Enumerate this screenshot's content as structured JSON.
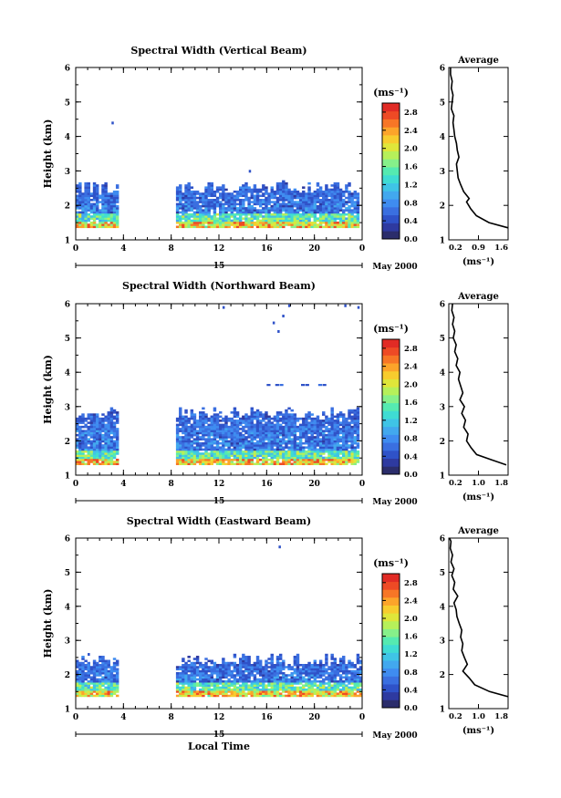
{
  "chart_data": [
    {
      "type": "heatmap",
      "title": "Spectral Width (Vertical Beam)",
      "ylabel": "Height (km)",
      "xlabel": "",
      "x_ticks": [
        "0",
        "4",
        "8",
        "12",
        "16",
        "20",
        "0"
      ],
      "y_ticks": [
        "1",
        "2",
        "3",
        "4",
        "5",
        "6"
      ],
      "xlim": [
        0,
        24
      ],
      "ylim": [
        1,
        6
      ],
      "date_label": "15",
      "month_label": "May 2000",
      "colorbar": {
        "unit": "(ms⁻¹)",
        "ticks": [
          "0.0",
          "0.4",
          "0.8",
          "1.2",
          "1.6",
          "2.0",
          "2.4",
          "2.8"
        ],
        "range": [
          0.0,
          3.0
        ]
      },
      "data_gaps": [
        [
          3.8,
          8.2
        ]
      ],
      "echo_top_km": 2.5,
      "echo_base_km": 1.35,
      "isolated_echoes": [
        {
          "t": 3.0,
          "h": 4.35
        },
        {
          "t": 14.5,
          "h": 2.95
        }
      ],
      "profile": {
        "title": "Average",
        "xlabel": "(ms⁻¹)",
        "x_ticks": [
          "0.2",
          "0.9",
          "1.6"
        ],
        "xlim": [
          0.2,
          1.6
        ],
        "y_ticks": [
          "1",
          "2",
          "3",
          "4",
          "5",
          "6"
        ],
        "heights": [
          1.35,
          1.5,
          1.7,
          1.9,
          2.1,
          2.2,
          2.4,
          2.6,
          2.8,
          3.0,
          3.2,
          3.4,
          3.6,
          3.8,
          4.0,
          4.2,
          4.4,
          4.6,
          4.8,
          5.0,
          5.2,
          5.4,
          5.6,
          5.8,
          6.0
        ],
        "values": [
          1.6,
          1.15,
          0.85,
          0.72,
          0.62,
          0.68,
          0.55,
          0.48,
          0.42,
          0.4,
          0.38,
          0.44,
          0.4,
          0.38,
          0.34,
          0.32,
          0.3,
          0.32,
          0.26,
          0.28,
          0.3,
          0.26,
          0.28,
          0.24,
          0.24
        ]
      }
    },
    {
      "type": "heatmap",
      "title": "Spectral Width (Northward Beam)",
      "ylabel": "Height (km)",
      "xlabel": "",
      "x_ticks": [
        "0",
        "4",
        "8",
        "12",
        "16",
        "20",
        "0"
      ],
      "y_ticks": [
        "1",
        "2",
        "3",
        "4",
        "5",
        "6"
      ],
      "xlim": [
        0,
        24
      ],
      "ylim": [
        1,
        6
      ],
      "date_label": "15",
      "month_label": "May 2000",
      "colorbar": {
        "unit": "(ms⁻¹)",
        "ticks": [
          "0.0",
          "0.4",
          "0.8",
          "1.2",
          "1.6",
          "2.0",
          "2.4",
          "2.8"
        ],
        "range": [
          0.0,
          3.0
        ]
      },
      "data_gaps": [
        [
          3.8,
          8.2
        ]
      ],
      "echo_top_km": 2.8,
      "echo_base_km": 1.3,
      "isolated_echoes": [
        {
          "t": 12.3,
          "h": 5.85
        },
        {
          "t": 16.5,
          "h": 5.4
        },
        {
          "t": 16.9,
          "h": 5.15
        },
        {
          "t": 17.3,
          "h": 5.6
        },
        {
          "t": 17.8,
          "h": 5.9
        },
        {
          "t": 22.5,
          "h": 5.9
        },
        {
          "t": 23.6,
          "h": 5.85
        }
      ],
      "elevated_layer": {
        "t_start": 16.0,
        "t_end": 21.5,
        "h": 3.6
      },
      "profile": {
        "title": "Average",
        "xlabel": "(ms⁻¹)",
        "x_ticks": [
          "0.2",
          "1.0",
          "1.8"
        ],
        "xlim": [
          0.2,
          1.8
        ],
        "y_ticks": [
          "1",
          "2",
          "3",
          "4",
          "5",
          "6"
        ],
        "heights": [
          1.3,
          1.45,
          1.6,
          1.8,
          2.0,
          2.2,
          2.4,
          2.6,
          2.8,
          3.0,
          3.2,
          3.4,
          3.6,
          3.8,
          4.0,
          4.2,
          4.4,
          4.6,
          4.8,
          5.0,
          5.2,
          5.4,
          5.6,
          5.8,
          6.0
        ],
        "values": [
          1.75,
          1.35,
          0.95,
          0.8,
          0.68,
          0.72,
          0.6,
          0.65,
          0.55,
          0.62,
          0.5,
          0.58,
          0.52,
          0.46,
          0.5,
          0.4,
          0.44,
          0.36,
          0.4,
          0.32,
          0.36,
          0.3,
          0.34,
          0.28,
          0.3
        ]
      }
    },
    {
      "type": "heatmap",
      "title": "Spectral Width (Eastward Beam)",
      "ylabel": "Height (km)",
      "xlabel": "Local Time",
      "x_ticks": [
        "0",
        "4",
        "8",
        "12",
        "16",
        "20",
        "0"
      ],
      "y_ticks": [
        "1",
        "2",
        "3",
        "4",
        "5",
        "6"
      ],
      "xlim": [
        0,
        24
      ],
      "ylim": [
        1,
        6
      ],
      "date_label": "15",
      "month_label": "May 2000",
      "colorbar": {
        "unit": "(ms⁻¹)",
        "ticks": [
          "0.0",
          "0.4",
          "0.8",
          "1.2",
          "1.6",
          "2.0",
          "2.4",
          "2.8"
        ],
        "range": [
          0.0,
          3.0
        ]
      },
      "data_gaps": [
        [
          3.8,
          8.2
        ]
      ],
      "echo_top_km": 2.4,
      "echo_base_km": 1.35,
      "isolated_echoes": [
        {
          "t": 1.0,
          "h": 2.55
        },
        {
          "t": 17.0,
          "h": 5.7
        }
      ],
      "profile": {
        "title": "Average",
        "xlabel": "(ms⁻¹)",
        "x_ticks": [
          "0.2",
          "1.0",
          "1.8"
        ],
        "xlim": [
          0.2,
          1.8
        ],
        "y_ticks": [
          "1",
          "2",
          "3",
          "4",
          "5",
          "6"
        ],
        "heights": [
          1.35,
          1.5,
          1.7,
          1.9,
          2.1,
          2.3,
          2.5,
          2.7,
          2.9,
          3.1,
          3.3,
          3.5,
          3.7,
          3.9,
          4.1,
          4.3,
          4.5,
          4.7,
          4.9,
          5.1,
          5.3,
          5.5,
          5.7,
          5.9,
          6.0
        ],
        "values": [
          1.8,
          1.3,
          0.9,
          0.75,
          0.58,
          0.7,
          0.62,
          0.55,
          0.58,
          0.52,
          0.55,
          0.48,
          0.42,
          0.4,
          0.34,
          0.44,
          0.32,
          0.36,
          0.28,
          0.34,
          0.26,
          0.3,
          0.24,
          0.26,
          0.22
        ]
      }
    }
  ],
  "colorbar_colors": [
    "#2b2d6b",
    "#2e3aa0",
    "#2f52c8",
    "#3a6fe0",
    "#3f8cf0",
    "#42a8ee",
    "#3fc4e6",
    "#3fdcd3",
    "#55eab1",
    "#86f08a",
    "#b6f05a",
    "#dfe63a",
    "#f7cc2e",
    "#fca42a",
    "#f77626",
    "#ee4a25",
    "#e12b25"
  ]
}
